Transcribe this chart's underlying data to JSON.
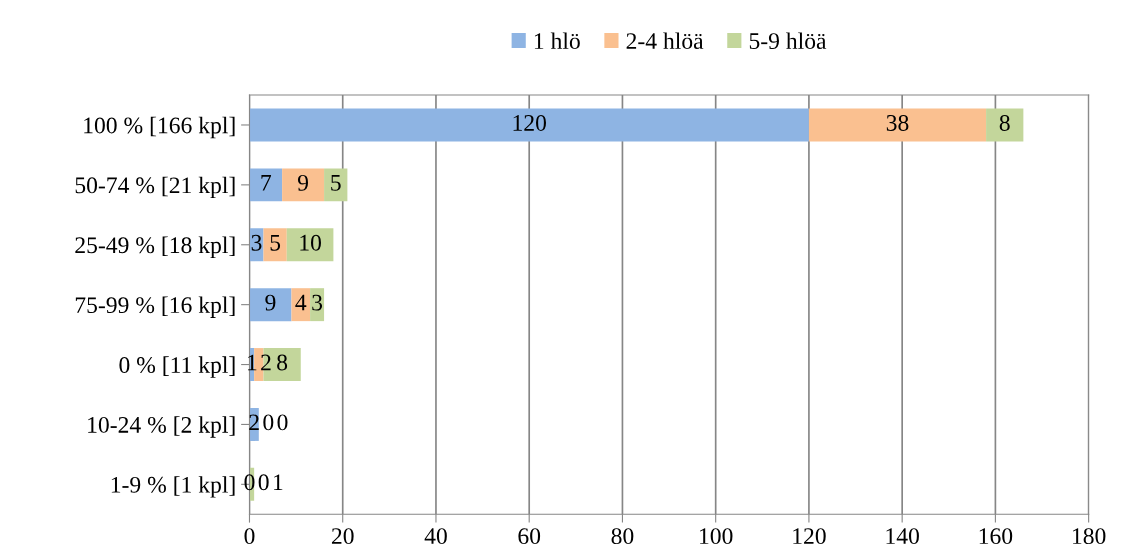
{
  "chart_data": {
    "type": "bar",
    "orientation": "horizontal",
    "stacked": true,
    "data_labels": true,
    "categories": [
      "100 % [166 kpl]",
      "50-74 % [21 kpl]",
      "25-49 % [18 kpl]",
      "75-99 % [16 kpl]",
      "0 % [11 kpl]",
      "10-24 % [2 kpl]",
      "1-9 % [1 kpl]"
    ],
    "series": [
      {
        "name": "1 hlö",
        "color": "#8eb4e3",
        "values": [
          120,
          7,
          3,
          9,
          1,
          2,
          0
        ]
      },
      {
        "name": "2-4 hlöä",
        "color": "#fac090",
        "values": [
          38,
          9,
          5,
          4,
          2,
          0,
          0
        ]
      },
      {
        "name": "5-9 hlöä",
        "color": "#c3d69b",
        "values": [
          8,
          5,
          10,
          3,
          8,
          0,
          1
        ]
      }
    ],
    "xlim": [
      0,
      180
    ],
    "xticks": [
      0,
      20,
      40,
      60,
      80,
      100,
      120,
      140,
      160,
      180
    ],
    "grid": "x",
    "legend": "top"
  }
}
